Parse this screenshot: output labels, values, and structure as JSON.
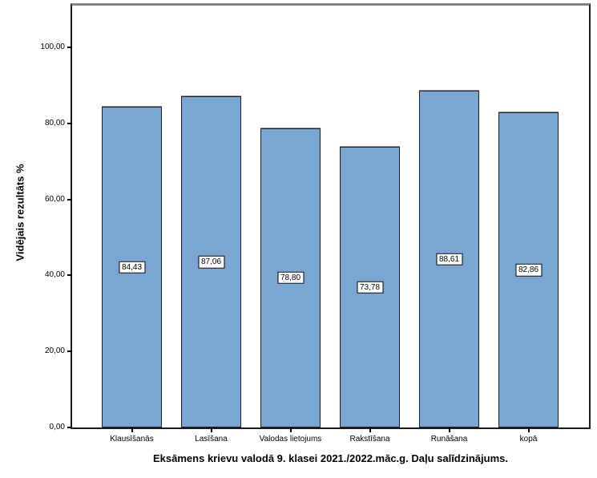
{
  "figure": {
    "caption": "Eksāmens krievu valodā 9. klasei 2021./2022.māc.g. Daļu salīdzinājums.",
    "y_axis_title": "Vidējais rezultāts %"
  },
  "chart_data": {
    "type": "bar",
    "categories": [
      "Klausīšanās",
      "Lasīšana",
      "Valodas lietojums",
      "Rakstīšana",
      "Runāšana",
      "kopā"
    ],
    "values": [
      84.43,
      87.06,
      78.8,
      73.78,
      88.61,
      82.86
    ],
    "value_labels": [
      "84,43",
      "87,06",
      "78,80",
      "73,78",
      "88,61",
      "82,86"
    ],
    "title": "Eksāmens krievu valodā 9. klasei 2021./2022.māc.g. Daļu salīdzinājums.",
    "xlabel": "",
    "ylabel": "Vidējais rezultāts %",
    "ylim": [
      0,
      111
    ],
    "yticks": [
      0,
      20,
      40,
      60,
      80,
      100
    ],
    "ytick_labels": [
      "0,00",
      "20,00",
      "40,00",
      "60,00",
      "80,00",
      "100,00"
    ],
    "grid": false,
    "legend_position": "none",
    "value_label_position": "middle-of-bar",
    "bar_fill_color": "#7aa6d4",
    "bar_border_color": "#1f1f1f",
    "frame_top_color": "#828282",
    "axis_color": "#1a1a1a"
  }
}
